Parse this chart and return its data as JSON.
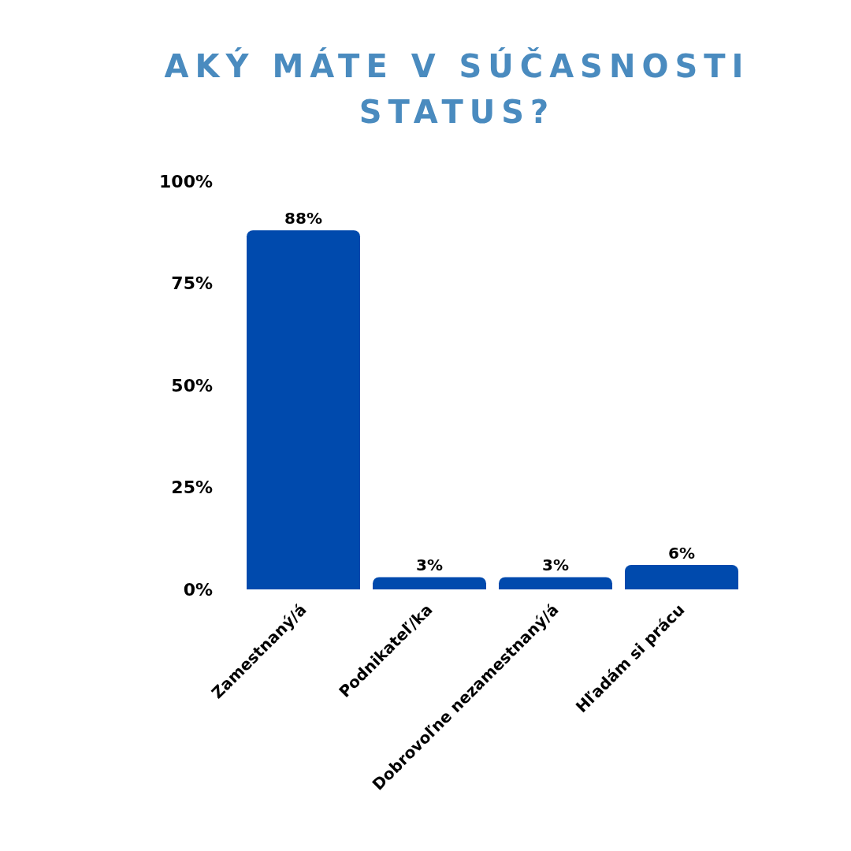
{
  "chart_data": {
    "type": "bar",
    "title": "AKÝ MÁTE V SÚČASNOSTI STATUS?",
    "categories": [
      "Zamestnaný/á",
      "Podnikateľ/ka",
      "Dobrovoľne nezamestnaný/á",
      "Hľadám si prácu"
    ],
    "values": [
      88,
      3,
      3,
      6
    ],
    "value_labels": [
      "88%",
      "3%",
      "3%",
      "6%"
    ],
    "color": "#004aad",
    "ylim": [
      0,
      100
    ],
    "yticks": [
      {
        "value": 0,
        "label": "0%"
      },
      {
        "value": 25,
        "label": "25%"
      },
      {
        "value": 50,
        "label": "50%"
      },
      {
        "value": 75,
        "label": "75%"
      },
      {
        "value": 100,
        "label": "100%"
      }
    ],
    "grid": false
  }
}
